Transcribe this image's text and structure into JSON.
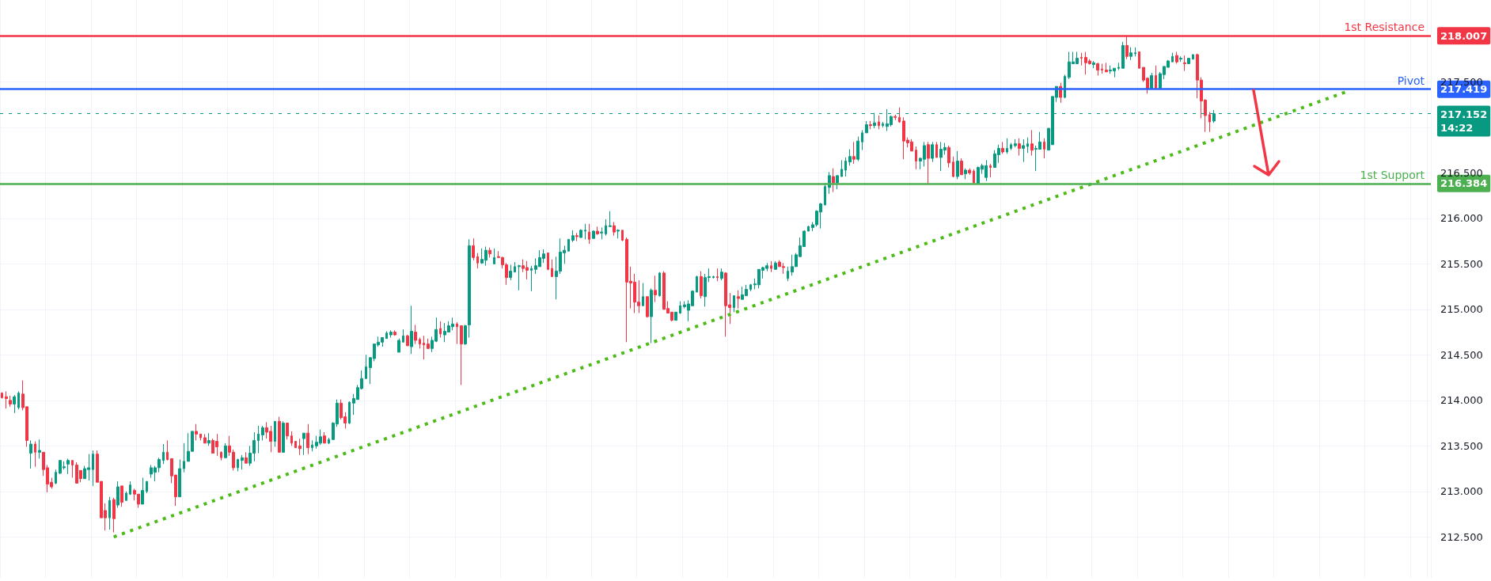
{
  "chart_data": {
    "type": "candlestick",
    "grid": true,
    "tick_labels": "y",
    "ylim": [
      212.05,
      218.4
    ],
    "yticks": [
      {
        "value": 212.5,
        "label": "212.500"
      },
      {
        "value": 213,
        "label": "213.000"
      },
      {
        "value": 213.5,
        "label": "213.500"
      },
      {
        "value": 214,
        "label": "214.000"
      },
      {
        "value": 214.5,
        "label": "214.500"
      },
      {
        "value": 215,
        "label": "215.000"
      },
      {
        "value": 215.5,
        "label": "215.500"
      },
      {
        "value": 216,
        "label": "216.000"
      },
      {
        "value": 216.5,
        "label": "216.500"
      },
      {
        "value": 217,
        "label": null
      },
      {
        "value": 217.5,
        "label": "217.500"
      },
      {
        "value": 218,
        "label": null
      }
    ],
    "ref_lines": [
      {
        "axis": "y",
        "value": 218.007,
        "label": "218.007",
        "color": "#f23645",
        "line_style": "solid"
      },
      {
        "axis": "y",
        "value": 217.419,
        "label": "217.419",
        "color": "#2962ff",
        "line_style": "solid"
      },
      {
        "axis": "y",
        "value": 216.384,
        "label": "216.384",
        "color": "#4caf50",
        "line_style": "solid"
      },
      {
        "axis": "y",
        "value": 217.152,
        "label": "217.152",
        "color": "#089981",
        "line_style": "dotted"
      }
    ],
    "annotations": [
      {
        "text": "1st Resistance",
        "y": 218.007
      },
      {
        "text": "Pivot",
        "y": 217.419
      },
      {
        "text": "1st Support",
        "y": 216.384
      },
      "14:22"
    ],
    "categories": [
      null,
      null,
      null,
      null,
      null,
      null,
      null,
      null,
      null,
      null,
      null,
      null,
      null,
      null,
      null,
      null,
      null,
      null,
      null,
      null,
      null,
      null,
      null,
      null,
      null,
      null,
      null,
      null,
      null,
      null,
      null,
      null,
      null,
      null,
      null,
      null,
      null,
      null,
      null,
      null,
      null,
      null,
      null,
      null,
      null,
      null,
      null,
      null,
      null,
      null,
      null,
      null,
      null,
      null,
      null,
      null,
      null,
      null,
      null,
      null,
      null,
      null,
      null,
      null,
      null,
      null,
      null,
      null,
      null,
      null,
      null,
      null,
      null,
      null,
      null,
      null,
      null,
      null,
      null,
      null,
      null,
      null,
      null,
      null,
      null,
      null,
      null,
      null,
      null,
      null,
      null,
      null,
      null,
      null,
      null,
      null,
      null,
      null,
      null,
      null,
      null,
      null,
      null,
      null,
      null,
      null,
      null,
      null,
      null,
      null,
      null,
      null,
      null,
      null,
      null,
      null,
      null,
      null,
      null,
      null,
      null,
      null,
      null,
      null,
      null,
      null,
      null,
      null,
      null,
      null,
      null,
      null,
      null,
      null,
      null,
      null,
      null,
      null,
      null,
      null,
      null,
      null,
      null,
      null,
      null,
      null,
      null,
      null,
      null,
      null,
      null,
      null,
      null,
      null,
      null,
      null,
      null,
      null,
      null,
      null,
      null,
      null,
      null,
      null,
      null,
      null,
      null,
      null,
      null,
      null,
      null,
      null,
      null,
      null,
      null,
      null,
      null,
      null,
      null,
      null,
      null,
      null,
      null,
      null,
      null,
      null,
      null,
      null,
      null,
      null,
      null,
      null,
      null,
      null,
      null,
      null,
      null,
      null,
      null,
      null,
      null,
      null,
      null,
      null,
      null,
      null,
      null,
      null,
      null,
      null,
      null,
      null,
      null,
      null,
      null,
      null,
      null,
      null,
      null,
      null,
      null,
      null,
      null,
      null,
      null,
      null,
      null,
      null,
      null,
      null,
      null,
      null,
      null,
      null,
      null,
      null,
      null,
      null,
      null,
      null,
      null,
      null,
      null,
      null,
      null,
      null,
      null,
      null,
      null,
      null,
      null,
      null,
      null,
      null,
      null,
      null,
      null,
      null,
      null,
      null,
      null,
      null,
      null,
      null,
      null,
      null,
      null,
      null,
      null,
      null,
      null,
      null,
      null,
      null,
      null,
      null,
      null,
      null,
      null,
      null,
      null,
      null,
      null,
      null,
      null,
      null,
      null,
      null,
      null,
      null,
      null,
      null,
      null,
      null,
      null,
      null,
      null,
      null,
      null,
      null,
      null,
      null,
      null,
      null,
      null,
      null,
      null,
      null,
      null,
      null,
      null,
      null,
      null,
      null,
      null,
      null,
      null,
      null,
      null,
      null,
      null,
      null,
      null,
      null,
      null,
      null,
      null,
      null,
      null,
      null,
      null,
      null,
      null,
      null,
      null,
      null,
      null,
      null,
      null,
      null,
      null,
      null,
      null,
      null,
      null,
      null
    ],
    "ohlc": [
      [
        214.08,
        214.09,
        214.02,
        214.03
      ],
      [
        214.04,
        214.1,
        213.91,
        214.02
      ],
      [
        214.0,
        214.05,
        213.93,
        213.96
      ],
      [
        213.96,
        214.06,
        213.86,
        214.04
      ],
      [
        213.92,
        214.1,
        213.9,
        214.08
      ],
      [
        214.07,
        214.22,
        213.89,
        213.92
      ],
      [
        213.93,
        213.93,
        213.49,
        213.56
      ],
      [
        213.42,
        213.56,
        213.25,
        213.52
      ],
      [
        213.52,
        213.55,
        213.27,
        213.43
      ],
      [
        213.43,
        213.57,
        213.36,
        213.45
      ],
      [
        213.43,
        213.43,
        213.17,
        213.24
      ],
      [
        213.26,
        213.29,
        212.99,
        213.08
      ],
      [
        213.1,
        213.15,
        213.03,
        213.05
      ],
      [
        213.09,
        213.24,
        213.08,
        213.21
      ],
      [
        213.2,
        213.34,
        213.19,
        213.34
      ],
      [
        213.26,
        213.33,
        213.24,
        213.27
      ],
      [
        213.3,
        213.36,
        213.19,
        213.34
      ],
      [
        213.34,
        213.34,
        213.15,
        213.29
      ],
      [
        213.29,
        213.32,
        213.09,
        213.09
      ],
      [
        213.23,
        213.23,
        213.1,
        213.14
      ],
      [
        213.14,
        213.28,
        213.14,
        213.25
      ],
      [
        213.24,
        213.41,
        213.12,
        213.26
      ],
      [
        213.24,
        213.45,
        213.06,
        213.41
      ],
      [
        213.41,
        213.45,
        213.1,
        213.1
      ],
      [
        213.11,
        213.11,
        212.71,
        212.71
      ],
      [
        212.79,
        212.87,
        212.57,
        212.71
      ],
      [
        212.71,
        212.94,
        212.58,
        212.9
      ],
      [
        212.91,
        212.93,
        212.55,
        212.7
      ],
      [
        212.85,
        213.11,
        212.82,
        213.05
      ],
      [
        213.06,
        213.06,
        212.83,
        212.88
      ],
      [
        212.9,
        213.0,
        212.9,
        212.98
      ],
      [
        212.97,
        213.11,
        212.96,
        213.07
      ],
      [
        213.01,
        213.03,
        212.9,
        212.97
      ],
      [
        212.97,
        212.97,
        212.82,
        212.86
      ],
      [
        212.86,
        213.15,
        212.86,
        213.01
      ],
      [
        213.0,
        213.11,
        212.98,
        213.11
      ],
      [
        213.19,
        213.29,
        213.15,
        213.26
      ],
      [
        213.21,
        213.28,
        213.11,
        213.26
      ],
      [
        213.26,
        213.37,
        213.21,
        213.35
      ],
      [
        213.34,
        213.52,
        213.3,
        213.43
      ],
      [
        213.43,
        213.56,
        213.34,
        213.35
      ],
      [
        213.36,
        213.36,
        213.09,
        213.17
      ],
      [
        213.18,
        213.18,
        212.84,
        212.94
      ],
      [
        212.94,
        213.35,
        212.94,
        213.25
      ],
      [
        213.25,
        213.53,
        213.21,
        213.33
      ],
      [
        213.33,
        213.64,
        213.33,
        213.44
      ],
      [
        213.44,
        213.66,
        213.44,
        213.66
      ],
      [
        213.66,
        213.74,
        213.56,
        213.63
      ],
      [
        213.63,
        213.63,
        213.56,
        213.59
      ],
      [
        213.59,
        213.63,
        213.53,
        213.53
      ],
      [
        213.53,
        213.64,
        213.5,
        213.56
      ],
      [
        213.56,
        213.58,
        213.42,
        213.42
      ],
      [
        213.55,
        213.63,
        213.39,
        213.49
      ],
      [
        213.43,
        213.44,
        213.34,
        213.37
      ],
      [
        213.37,
        213.53,
        213.37,
        213.5
      ],
      [
        213.5,
        213.61,
        213.39,
        213.43
      ],
      [
        213.43,
        213.46,
        213.23,
        213.26
      ],
      [
        213.26,
        213.36,
        213.22,
        213.35
      ],
      [
        213.34,
        213.4,
        213.24,
        213.37
      ],
      [
        213.37,
        213.43,
        213.31,
        213.31
      ],
      [
        213.31,
        213.5,
        213.28,
        213.42
      ],
      [
        213.42,
        213.65,
        213.33,
        213.56
      ],
      [
        213.56,
        213.72,
        213.42,
        213.63
      ],
      [
        213.62,
        213.72,
        213.56,
        213.7
      ],
      [
        213.7,
        213.76,
        213.58,
        213.65
      ],
      [
        213.66,
        213.72,
        213.43,
        213.55
      ],
      [
        213.55,
        213.77,
        213.49,
        213.77
      ],
      [
        213.77,
        213.82,
        213.43,
        213.43
      ],
      [
        213.43,
        213.77,
        213.43,
        213.75
      ],
      [
        213.75,
        213.75,
        213.57,
        213.61
      ],
      [
        213.61,
        213.66,
        213.5,
        213.53
      ],
      [
        213.55,
        213.55,
        213.48,
        213.48
      ],
      [
        213.5,
        213.58,
        213.4,
        213.47
      ],
      [
        213.58,
        213.64,
        213.4,
        213.64
      ],
      [
        213.64,
        213.74,
        213.41,
        213.48
      ],
      [
        213.48,
        213.56,
        213.44,
        213.51
      ],
      [
        213.5,
        213.61,
        213.47,
        213.54
      ],
      [
        213.53,
        213.68,
        213.51,
        213.6
      ],
      [
        213.61,
        213.65,
        213.53,
        213.53
      ],
      [
        213.53,
        213.59,
        213.52,
        213.57
      ],
      [
        213.57,
        213.76,
        213.57,
        213.75
      ],
      [
        213.74,
        214.01,
        213.71,
        213.97
      ],
      [
        213.97,
        214.01,
        213.79,
        213.81
      ],
      [
        213.82,
        213.87,
        213.69,
        213.75
      ],
      [
        213.75,
        213.99,
        213.74,
        213.98
      ],
      [
        213.97,
        214.07,
        213.84,
        214.02
      ],
      [
        214.01,
        214.17,
        214.01,
        214.14
      ],
      [
        214.13,
        214.33,
        214.12,
        214.24
      ],
      [
        214.24,
        214.5,
        214.24,
        214.37
      ],
      [
        214.36,
        214.47,
        214.18,
        214.47
      ],
      [
        214.46,
        214.62,
        214.43,
        214.62
      ],
      [
        214.61,
        214.7,
        214.59,
        214.64
      ],
      [
        214.64,
        214.69,
        214.59,
        214.69
      ],
      [
        214.68,
        214.76,
        214.68,
        214.74
      ],
      [
        214.72,
        214.77,
        214.69,
        214.75
      ],
      [
        214.75,
        214.77,
        214.71,
        214.72
      ],
      [
        214.53,
        214.68,
        214.53,
        214.66
      ],
      [
        214.64,
        214.78,
        214.64,
        214.71
      ],
      [
        214.71,
        214.72,
        214.6,
        214.6
      ],
      [
        214.59,
        215.04,
        214.51,
        214.76
      ],
      [
        214.75,
        214.83,
        214.62,
        214.66
      ],
      [
        214.67,
        214.69,
        214.57,
        214.62
      ],
      [
        214.63,
        214.71,
        214.45,
        214.61
      ],
      [
        214.62,
        214.68,
        214.57,
        214.57
      ],
      [
        214.57,
        214.7,
        214.53,
        214.66
      ],
      [
        214.65,
        214.91,
        214.64,
        214.78
      ],
      [
        214.79,
        214.87,
        214.69,
        214.73
      ],
      [
        214.72,
        214.85,
        214.64,
        214.76
      ],
      [
        214.75,
        214.87,
        214.75,
        214.82
      ],
      [
        214.81,
        214.91,
        214.77,
        214.84
      ],
      [
        214.84,
        214.86,
        214.62,
        214.81
      ],
      [
        214.82,
        214.82,
        214.17,
        214.62
      ],
      [
        214.62,
        214.83,
        214.61,
        214.82
      ],
      [
        214.83,
        215.77,
        214.69,
        215.7
      ],
      [
        215.7,
        215.78,
        215.54,
        215.57
      ],
      [
        215.58,
        215.62,
        215.45,
        215.51
      ],
      [
        215.51,
        215.67,
        215.5,
        215.55
      ],
      [
        215.54,
        215.69,
        215.48,
        215.65
      ],
      [
        215.65,
        215.68,
        215.57,
        215.61
      ],
      [
        215.5,
        215.67,
        215.5,
        215.57
      ],
      [
        215.58,
        215.64,
        215.57,
        215.57
      ],
      [
        215.57,
        215.58,
        215.45,
        215.49
      ],
      [
        215.49,
        215.51,
        215.27,
        215.35
      ],
      [
        215.35,
        215.49,
        215.32,
        215.42
      ],
      [
        215.41,
        215.52,
        215.41,
        215.47
      ],
      [
        215.47,
        215.49,
        215.21,
        215.48
      ],
      [
        215.48,
        215.55,
        215.41,
        215.45
      ],
      [
        215.46,
        215.53,
        215.33,
        215.43
      ],
      [
        215.43,
        215.48,
        215.2,
        215.45
      ],
      [
        215.44,
        215.56,
        215.39,
        215.48
      ],
      [
        215.47,
        215.65,
        215.47,
        215.57
      ],
      [
        215.56,
        215.66,
        215.51,
        215.61
      ],
      [
        215.62,
        215.62,
        215.43,
        215.44
      ],
      [
        215.45,
        215.55,
        215.36,
        215.36
      ],
      [
        215.36,
        215.58,
        215.11,
        215.42
      ],
      [
        215.42,
        215.78,
        215.39,
        215.63
      ],
      [
        215.62,
        215.7,
        215.5,
        215.65
      ],
      [
        215.64,
        215.77,
        215.64,
        215.77
      ],
      [
        215.76,
        215.87,
        215.74,
        215.81
      ],
      [
        215.81,
        215.84,
        215.75,
        215.8
      ],
      [
        215.79,
        215.88,
        215.79,
        215.87
      ],
      [
        215.86,
        215.94,
        215.77,
        215.87
      ],
      [
        215.85,
        215.94,
        215.72,
        215.77
      ],
      [
        215.78,
        215.87,
        215.78,
        215.86
      ],
      [
        215.86,
        215.91,
        215.82,
        215.83
      ],
      [
        215.84,
        215.9,
        215.77,
        215.85
      ],
      [
        215.83,
        215.99,
        215.81,
        215.92
      ],
      [
        215.91,
        216.08,
        215.91,
        215.92
      ],
      [
        215.92,
        215.96,
        215.81,
        215.85
      ],
      [
        215.86,
        215.88,
        215.78,
        215.87
      ],
      [
        215.87,
        215.87,
        215.75,
        215.76
      ],
      [
        215.77,
        215.79,
        214.64,
        215.3
      ],
      [
        215.31,
        215.47,
        215.01,
        215.29
      ],
      [
        215.3,
        215.39,
        214.96,
        215.08
      ],
      [
        215.08,
        215.32,
        214.96,
        215.04
      ],
      [
        215.04,
        215.29,
        215.04,
        215.14
      ],
      [
        215.14,
        215.14,
        214.91,
        214.92
      ],
      [
        214.92,
        215.23,
        214.63,
        215.21
      ],
      [
        215.21,
        215.37,
        215.08,
        215.16
      ],
      [
        215.15,
        215.41,
        215.14,
        215.4
      ],
      [
        215.4,
        215.42,
        215.0,
        215.0
      ],
      [
        215.01,
        215.09,
        214.96,
        214.96
      ],
      [
        214.97,
        214.97,
        214.87,
        214.88
      ],
      [
        214.88,
        214.97,
        214.88,
        214.97
      ],
      [
        214.96,
        215.09,
        214.95,
        215.04
      ],
      [
        215.03,
        215.09,
        215.01,
        215.05
      ],
      [
        214.99,
        215.1,
        214.87,
        215.06
      ],
      [
        215.04,
        215.21,
        215.04,
        215.2
      ],
      [
        215.19,
        215.37,
        215.19,
        215.36
      ],
      [
        215.36,
        215.42,
        215.12,
        215.15
      ],
      [
        215.14,
        215.39,
        215.03,
        215.35
      ],
      [
        215.35,
        215.45,
        215.3,
        215.36
      ],
      [
        215.35,
        215.37,
        215.34,
        215.36
      ],
      [
        215.36,
        215.45,
        215.31,
        215.35
      ],
      [
        215.34,
        215.45,
        215.32,
        215.41
      ],
      [
        215.4,
        215.41,
        214.7,
        215.04
      ],
      [
        215.05,
        215.18,
        214.84,
        215.02
      ],
      [
        215.02,
        215.15,
        214.97,
        215.15
      ],
      [
        215.14,
        215.21,
        215.01,
        215.12
      ],
      [
        215.11,
        215.25,
        215.11,
        215.16
      ],
      [
        215.15,
        215.27,
        215.15,
        215.22
      ],
      [
        215.22,
        215.28,
        215.2,
        215.27
      ],
      [
        215.27,
        215.34,
        215.22,
        215.28
      ],
      [
        215.27,
        215.44,
        215.23,
        215.44
      ],
      [
        215.43,
        215.47,
        215.34,
        215.46
      ],
      [
        215.45,
        215.51,
        215.42,
        215.48
      ],
      [
        215.48,
        215.53,
        215.41,
        215.45
      ],
      [
        215.44,
        215.53,
        215.44,
        215.51
      ],
      [
        215.52,
        215.54,
        215.47,
        215.47
      ],
      [
        215.47,
        215.51,
        215.39,
        215.46
      ],
      [
        215.34,
        215.47,
        215.31,
        215.42
      ],
      [
        215.41,
        215.6,
        215.37,
        215.47
      ],
      [
        215.47,
        215.62,
        215.47,
        215.6
      ],
      [
        215.58,
        215.79,
        215.58,
        215.7
      ],
      [
        215.69,
        215.87,
        215.69,
        215.86
      ],
      [
        215.86,
        215.92,
        215.86,
        215.91
      ],
      [
        215.9,
        215.96,
        215.86,
        215.93
      ],
      [
        215.93,
        216.09,
        215.91,
        216.08
      ],
      [
        216.07,
        216.17,
        215.89,
        216.16
      ],
      [
        216.15,
        216.39,
        216.14,
        216.35
      ],
      [
        216.34,
        216.51,
        216.27,
        216.47
      ],
      [
        216.46,
        216.55,
        216.29,
        216.39
      ],
      [
        216.39,
        216.47,
        216.32,
        216.47
      ],
      [
        216.46,
        216.64,
        216.46,
        216.54
      ],
      [
        216.53,
        216.67,
        216.46,
        216.63
      ],
      [
        216.62,
        216.76,
        216.58,
        216.68
      ],
      [
        216.68,
        216.84,
        216.6,
        216.65
      ],
      [
        216.65,
        216.9,
        216.63,
        216.85
      ],
      [
        216.84,
        216.97,
        216.75,
        216.94
      ],
      [
        216.94,
        217.07,
        216.94,
        217.03
      ],
      [
        217.03,
        217.07,
        216.98,
        217.02
      ],
      [
        217.02,
        217.16,
        216.99,
        217.05
      ],
      [
        217.06,
        217.13,
        216.98,
        217.02
      ],
      [
        217.02,
        217.06,
        217.0,
        217.04
      ],
      [
        217.01,
        217.2,
        216.96,
        217.04
      ],
      [
        217.03,
        217.13,
        217.01,
        217.12
      ],
      [
        217.12,
        217.14,
        217.08,
        217.11
      ],
      [
        217.11,
        217.22,
        217.05,
        217.06
      ],
      [
        217.07,
        217.11,
        216.65,
        216.85
      ],
      [
        216.86,
        216.89,
        216.78,
        216.83
      ],
      [
        216.84,
        216.87,
        216.74,
        216.74
      ],
      [
        216.75,
        216.79,
        216.54,
        216.63
      ],
      [
        216.63,
        216.67,
        216.54,
        216.66
      ],
      [
        216.65,
        216.84,
        216.57,
        216.8
      ],
      [
        216.81,
        216.84,
        216.37,
        216.66
      ],
      [
        216.66,
        216.84,
        216.62,
        216.81
      ],
      [
        216.81,
        216.84,
        216.67,
        216.67
      ],
      [
        216.67,
        216.84,
        216.52,
        216.76
      ],
      [
        216.75,
        216.83,
        216.7,
        216.78
      ],
      [
        216.78,
        216.8,
        216.56,
        216.61
      ],
      [
        216.62,
        216.68,
        216.45,
        216.46
      ],
      [
        216.46,
        216.74,
        216.43,
        216.63
      ],
      [
        216.63,
        216.66,
        216.48,
        216.48
      ],
      [
        216.49,
        216.55,
        216.43,
        216.53
      ],
      [
        216.53,
        216.55,
        216.48,
        216.5
      ],
      [
        216.52,
        216.54,
        216.38,
        216.39
      ],
      [
        216.38,
        216.57,
        216.38,
        216.56
      ],
      [
        216.54,
        216.6,
        216.49,
        216.58
      ],
      [
        216.45,
        216.64,
        216.41,
        216.58
      ],
      [
        216.58,
        216.6,
        216.45,
        216.56
      ],
      [
        216.56,
        216.75,
        216.56,
        216.71
      ],
      [
        216.7,
        216.81,
        216.61,
        216.77
      ],
      [
        216.77,
        216.84,
        216.71,
        216.73
      ],
      [
        216.73,
        216.88,
        216.71,
        216.77
      ],
      [
        216.77,
        216.83,
        216.75,
        216.81
      ],
      [
        216.8,
        216.87,
        216.78,
        216.82
      ],
      [
        216.82,
        216.88,
        216.69,
        216.77
      ],
      [
        216.77,
        216.87,
        216.62,
        216.8
      ],
      [
        216.79,
        216.89,
        216.72,
        216.82
      ],
      [
        216.82,
        216.97,
        216.69,
        216.75
      ],
      [
        216.76,
        216.8,
        216.52,
        216.77
      ],
      [
        216.76,
        216.95,
        216.76,
        216.84
      ],
      [
        216.84,
        216.88,
        216.66,
        216.76
      ],
      [
        216.75,
        216.99,
        216.75,
        216.99
      ],
      [
        216.81,
        217.34,
        216.81,
        217.34
      ],
      [
        217.33,
        217.45,
        217.28,
        217.45
      ],
      [
        217.45,
        217.49,
        217.27,
        217.33
      ],
      [
        217.33,
        217.58,
        217.32,
        217.56
      ],
      [
        217.55,
        217.83,
        217.53,
        217.72
      ],
      [
        217.7,
        217.83,
        217.7,
        217.72
      ],
      [
        217.7,
        217.83,
        217.7,
        217.76
      ],
      [
        217.77,
        217.82,
        217.68,
        217.76
      ],
      [
        217.77,
        217.83,
        217.58,
        217.71
      ],
      [
        217.73,
        217.75,
        217.69,
        217.7
      ],
      [
        217.69,
        217.73,
        217.65,
        217.71
      ],
      [
        217.7,
        217.71,
        217.57,
        217.63
      ],
      [
        217.64,
        217.7,
        217.59,
        217.63
      ],
      [
        217.63,
        217.71,
        217.61,
        217.61
      ],
      [
        217.62,
        217.68,
        217.59,
        217.63
      ],
      [
        217.62,
        217.65,
        217.55,
        217.65
      ],
      [
        217.65,
        217.71,
        217.63,
        217.66
      ],
      [
        217.65,
        217.94,
        217.65,
        217.9
      ],
      [
        217.9,
        218.01,
        217.75,
        217.78
      ],
      [
        217.78,
        217.88,
        217.74,
        217.82
      ],
      [
        217.81,
        217.88,
        217.78,
        217.82
      ],
      [
        217.83,
        217.83,
        217.65,
        217.65
      ],
      [
        217.66,
        217.66,
        217.5,
        217.52
      ],
      [
        217.54,
        217.55,
        217.37,
        217.42
      ],
      [
        217.43,
        217.6,
        217.43,
        217.57
      ],
      [
        217.57,
        217.68,
        217.43,
        217.43
      ],
      [
        217.43,
        217.61,
        217.43,
        217.59
      ],
      [
        217.58,
        217.67,
        217.53,
        217.67
      ],
      [
        217.66,
        217.74,
        217.66,
        217.73
      ],
      [
        217.72,
        217.82,
        217.72,
        217.78
      ],
      [
        217.79,
        217.83,
        217.7,
        217.72
      ],
      [
        217.75,
        217.78,
        217.72,
        217.76
      ],
      [
        217.71,
        217.79,
        217.62,
        217.7
      ],
      [
        217.7,
        217.76,
        217.7,
        217.76
      ],
      [
        217.75,
        217.8,
        217.75,
        217.8
      ],
      [
        217.8,
        217.81,
        217.32,
        217.52
      ],
      [
        217.52,
        217.55,
        217.1,
        217.29
      ],
      [
        217.3,
        217.31,
        216.95,
        217.13
      ],
      [
        217.14,
        217.17,
        216.95,
        217.06
      ],
      [
        217.07,
        217.19,
        217.05,
        217.15
      ],
      null,
      null,
      null,
      null,
      null,
      null,
      null,
      null,
      null,
      null,
      null,
      null,
      null,
      null,
      null,
      null,
      null,
      null,
      null,
      null,
      null,
      null,
      null,
      null,
      null,
      null,
      null,
      null,
      null,
      null,
      null,
      null,
      null,
      null,
      null,
      null,
      null,
      null,
      null,
      null,
      null,
      null,
      null,
      null,
      null,
      null,
      null,
      null,
      null,
      null,
      null,
      null
    ],
    "series": [
      {
        "type": "line",
        "color": "#4cbb17",
        "line_style": "dotted",
        "values": [
          null,
          null,
          null,
          null,
          null,
          null,
          null,
          null,
          null,
          null,
          null,
          null,
          null,
          null,
          null,
          null,
          null,
          null,
          null,
          null,
          null,
          null,
          null,
          null,
          null,
          null,
          null,
          212.5,
          null,
          null,
          null,
          null,
          null,
          null,
          null,
          null,
          null,
          null,
          null,
          null,
          null,
          null,
          null,
          null,
          null,
          null,
          null,
          null,
          null,
          null,
          null,
          null,
          null,
          null,
          null,
          null,
          null,
          null,
          null,
          null,
          null,
          null,
          null,
          null,
          null,
          null,
          null,
          null,
          null,
          null,
          null,
          null,
          null,
          null,
          null,
          null,
          null,
          null,
          null,
          null,
          null,
          null,
          null,
          null,
          null,
          null,
          null,
          null,
          null,
          null,
          null,
          null,
          null,
          null,
          null,
          null,
          null,
          null,
          null,
          null,
          null,
          null,
          null,
          null,
          null,
          null,
          null,
          null,
          null,
          null,
          null,
          null,
          null,
          null,
          null,
          null,
          null,
          null,
          null,
          null,
          null,
          null,
          null,
          null,
          null,
          null,
          null,
          null,
          null,
          null,
          null,
          null,
          null,
          null,
          null,
          null,
          null,
          null,
          null,
          null,
          null,
          null,
          null,
          null,
          null,
          null,
          null,
          null,
          null,
          null,
          null,
          null,
          null,
          null,
          null,
          null,
          null,
          null,
          null,
          null,
          null,
          null,
          null,
          null,
          null,
          null,
          null,
          null,
          null,
          null,
          null,
          null,
          null,
          null,
          null,
          null,
          null,
          null,
          null,
          null,
          null,
          null,
          null,
          null,
          null,
          null,
          null,
          null,
          null,
          null,
          null,
          null,
          null,
          null,
          null,
          null,
          null,
          null,
          null,
          null,
          null,
          null,
          null,
          null,
          null,
          null,
          null,
          null,
          null,
          null,
          null,
          null,
          null,
          null,
          null,
          null,
          null,
          null,
          null,
          null,
          null,
          null,
          null,
          null,
          null,
          null,
          null,
          null,
          null,
          null,
          null,
          null,
          null,
          null,
          null,
          null,
          null,
          null,
          null,
          null,
          null,
          null,
          null,
          null,
          null,
          null,
          null,
          null,
          null,
          null,
          null,
          null,
          null,
          null,
          null,
          null,
          null,
          null,
          null,
          null,
          null,
          null,
          null,
          null,
          null,
          null,
          null,
          null,
          null,
          null,
          null,
          null,
          null,
          null,
          null,
          null,
          null,
          null,
          null,
          null,
          null,
          null,
          null,
          null,
          null,
          null,
          null,
          null,
          null,
          null,
          null,
          null,
          null,
          null,
          null,
          null,
          null,
          null,
          null,
          null,
          null,
          null,
          null,
          null,
          null,
          null,
          null,
          null,
          null,
          null,
          null,
          null,
          null,
          null,
          null,
          null,
          null,
          null,
          null,
          null,
          null,
          null,
          null,
          null,
          null,
          217.39,
          null,
          null,
          null,
          null,
          null,
          null,
          null,
          null,
          null,
          null,
          null,
          null,
          null,
          null,
          null,
          null,
          null,
          null,
          null,
          null
        ]
      }
    ]
  }
}
